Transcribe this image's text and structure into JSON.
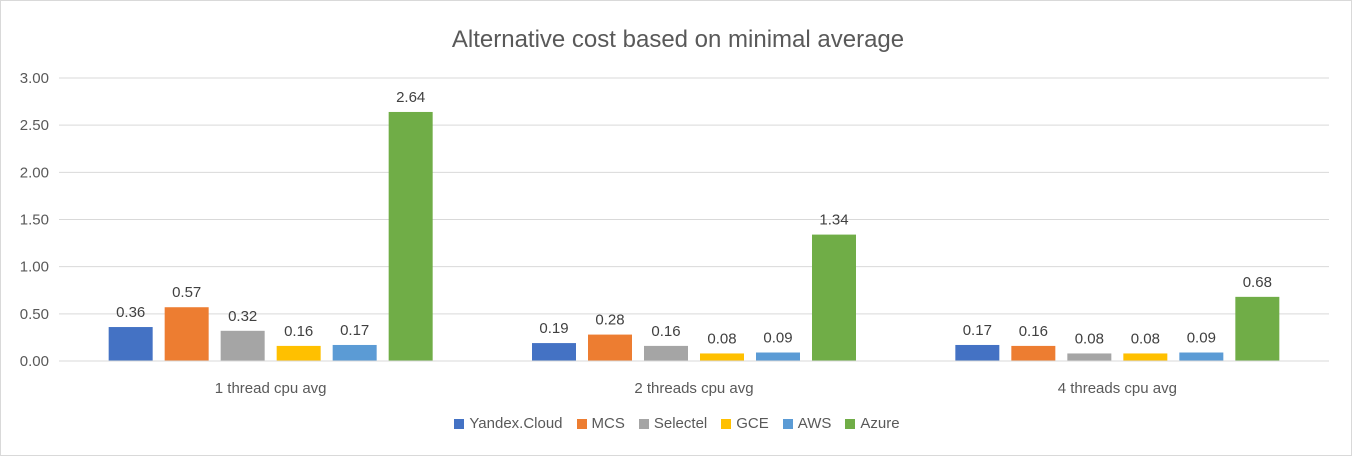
{
  "chart_data": {
    "type": "bar",
    "title": "Alternative cost based on minimal average",
    "categories": [
      "1 thread cpu avg",
      "2 threads cpu avg",
      "4 threads cpu avg"
    ],
    "series": [
      {
        "name": "Yandex.Cloud",
        "color": "#4472C4",
        "values": [
          0.36,
          0.19,
          0.17
        ]
      },
      {
        "name": "MCS",
        "color": "#ED7D31",
        "values": [
          0.57,
          0.28,
          0.16
        ]
      },
      {
        "name": "Selectel",
        "color": "#A5A5A5",
        "values": [
          0.32,
          0.16,
          0.08
        ]
      },
      {
        "name": "GCE",
        "color": "#FFC000",
        "values": [
          0.16,
          0.08,
          0.08
        ]
      },
      {
        "name": "AWS",
        "color": "#5B9BD5",
        "values": [
          0.17,
          0.09,
          0.09
        ]
      },
      {
        "name": "Azure",
        "color": "#70AD47",
        "values": [
          2.64,
          1.34,
          0.68
        ]
      }
    ],
    "yticks": [
      "0.00",
      "0.50",
      "1.00",
      "1.50",
      "2.00",
      "2.50",
      "3.00"
    ],
    "ylim": [
      0,
      3
    ],
    "grid": true,
    "legend": "bottom",
    "xlabel": "",
    "ylabel": ""
  }
}
